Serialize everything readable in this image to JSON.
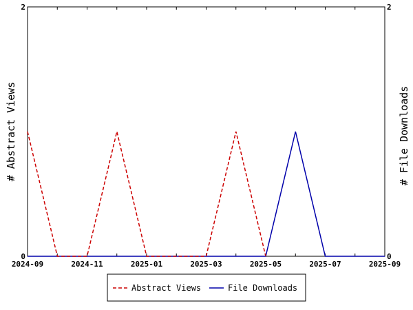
{
  "chart_data": {
    "type": "line",
    "x": [
      "2024-09",
      "2024-10",
      "2024-11",
      "2024-12",
      "2025-01",
      "2025-02",
      "2025-03",
      "2025-04",
      "2025-05",
      "2025-06",
      "2025-07",
      "2025-08",
      "2025-09"
    ],
    "x_tick_labels": [
      "2024-09",
      "2024-11",
      "2025-01",
      "2025-03",
      "2025-05",
      "2025-07",
      "2025-09"
    ],
    "series": [
      {
        "name": "Abstract Views",
        "axis": "left",
        "color": "#cc0000",
        "dash": "dashed",
        "values": [
          1,
          0,
          0,
          1,
          0,
          0,
          0,
          1,
          0,
          null,
          null,
          null,
          null
        ]
      },
      {
        "name": "File Downloads",
        "axis": "right",
        "color": "#0000aa",
        "dash": "solid",
        "values": [
          0,
          0,
          0,
          0,
          0,
          0,
          0,
          0,
          0,
          1,
          0,
          0,
          0
        ]
      }
    ],
    "ylabel": "# Abstract Views",
    "y2label": "# File Downloads",
    "ylim": [
      0,
      2
    ],
    "y2lim": [
      0,
      2
    ],
    "y_tick_labels": [
      "0",
      "2"
    ],
    "y2_tick_labels": [
      "0",
      "2"
    ],
    "grid": false,
    "legend_position": "bottom"
  }
}
